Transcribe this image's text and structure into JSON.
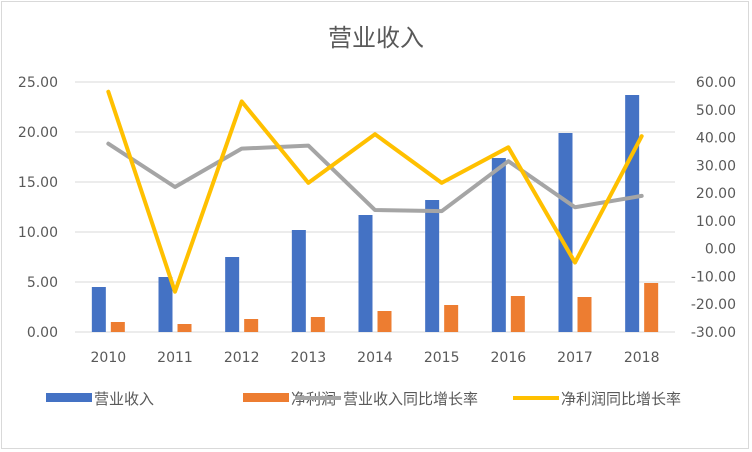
{
  "chart_data": {
    "type": "bar",
    "title": "营业收入",
    "categories": [
      "2010",
      "2011",
      "2012",
      "2013",
      "2014",
      "2015",
      "2016",
      "2017",
      "2018"
    ],
    "series": [
      {
        "name": "营业收入",
        "type": "bar",
        "axis": "left",
        "color": "#4472C4",
        "values": [
          4.5,
          5.5,
          7.5,
          10.2,
          11.7,
          13.2,
          17.4,
          19.9,
          23.7
        ]
      },
      {
        "name": "净利润",
        "type": "bar",
        "axis": "left",
        "color": "#ED7D31",
        "values": [
          1.0,
          0.8,
          1.3,
          1.5,
          2.1,
          2.7,
          3.6,
          3.5,
          4.9
        ]
      },
      {
        "name": "营业收入同比增长率",
        "type": "line",
        "axis": "right",
        "color": "#A5A5A5",
        "values": [
          37.8,
          22.2,
          36.0,
          37.1,
          13.9,
          13.5,
          31.5,
          14.9,
          19.0
        ]
      },
      {
        "name": "净利润同比增长率",
        "type": "line",
        "axis": "right",
        "color": "#FFC000",
        "values": [
          56.5,
          -15.5,
          53.0,
          23.7,
          41.2,
          23.7,
          36.5,
          -5.0,
          40.5
        ]
      }
    ],
    "y_left": {
      "min": 0,
      "max": 25,
      "step": 5,
      "tick_labels": [
        "0.00",
        "5.00",
        "10.00",
        "15.00",
        "20.00",
        "25.00"
      ]
    },
    "y_right": {
      "min": -30,
      "max": 60,
      "step": 10,
      "tick_labels": [
        "-30.00",
        "-20.00",
        "-10.00",
        "0.00",
        "10.00",
        "20.00",
        "30.00",
        "40.00",
        "50.00",
        "60.00"
      ]
    },
    "grid": true,
    "legend_position": "bottom"
  }
}
